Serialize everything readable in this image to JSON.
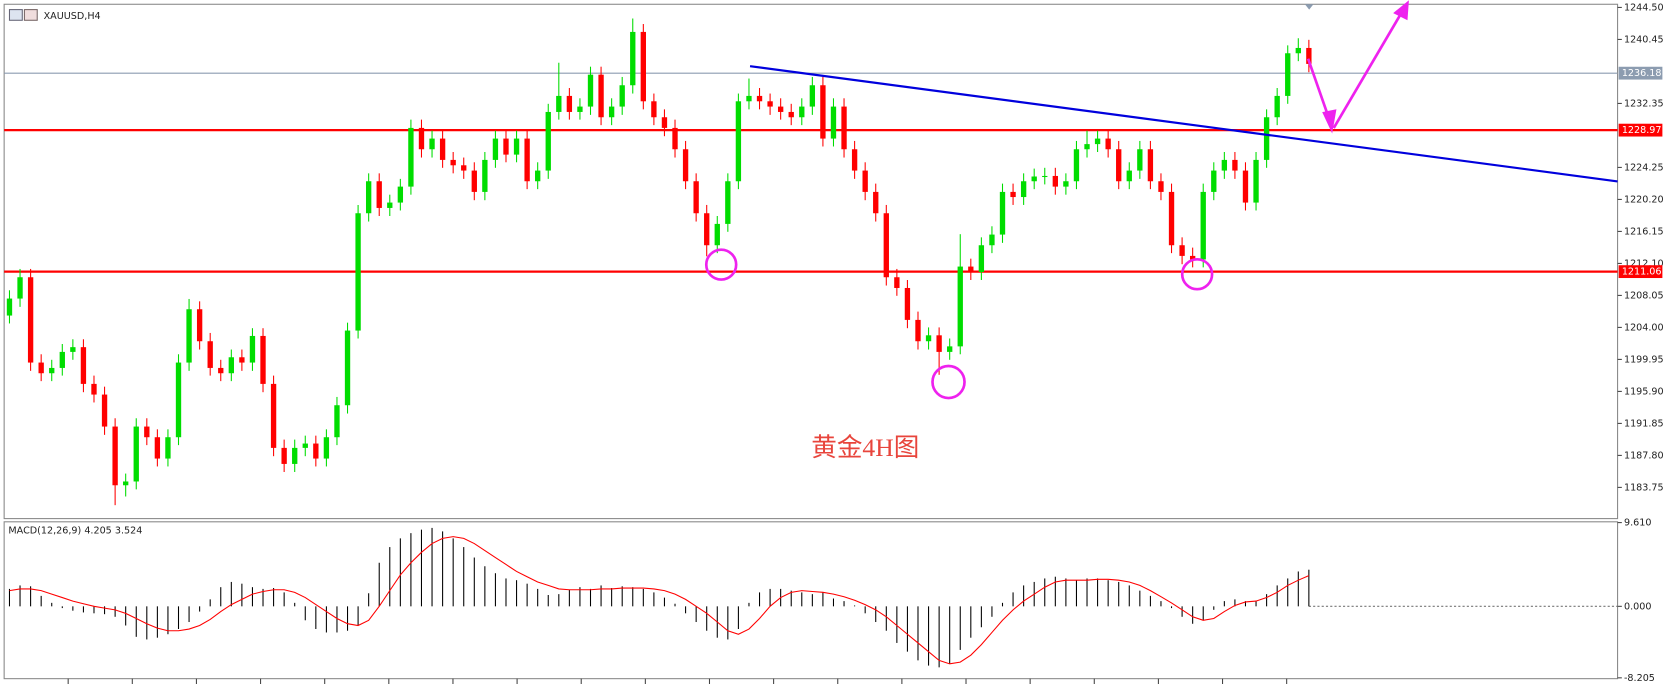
{
  "chart_data": [
    {
      "type": "candlestick",
      "title": "XAUUSD,H4",
      "annotation": "黄金4H图",
      "up_color": "#00dd00",
      "down_color": "#ff0000",
      "ylim": [
        1179.8,
        1244.9
      ],
      "yticks": [
        {
          "value": 1244.5,
          "label": "1244.50"
        },
        1240.45,
        1232.35,
        1224.25,
        {
          "value": 1220.2,
          "label": "1220.20"
        },
        1216.15,
        {
          "value": 1212.1,
          "label": "1212.10"
        },
        1208.05,
        {
          "value": 1204,
          "label": "1204.00"
        },
        1199.95,
        {
          "value": 1195.9,
          "label": "1195.90"
        },
        1191.85,
        {
          "value": 1187.8,
          "label": "1187.80"
        },
        1183.75
      ],
      "levels": [
        {
          "value": 1236.18,
          "color": "#8c9cb0"
        },
        {
          "value": 1228.97,
          "color": "#ff0000"
        },
        {
          "value": 1211.06,
          "color": "#ff0000"
        }
      ],
      "open": [
        1205.5,
        1207.65,
        1210.35,
        1199.55,
        1198.2,
        1198.87,
        1200.9,
        1201.5,
        1196.85,
        1195.5,
        1191.45,
        1184.02,
        1184.5,
        1191.45,
        1190.1,
        1187.4,
        1190.1,
        1199.55,
        1206.3,
        1202.25,
        1198.87,
        1198.2,
        1200.22,
        1199.55,
        1202.92,
        1196.85,
        1188.75,
        1186.72,
        1188.75,
        1189.3,
        1187.4,
        1190.1,
        1194.15,
        1203.6,
        1218.45,
        1222.5,
        1219.12,
        1219.8,
        1221.82,
        1229.25,
        1226.55,
        1227.9,
        1225.2,
        1224.52,
        1223.85,
        1221.15,
        1225.2,
        1227.9,
        1225.87,
        1227.9,
        1222.5,
        1223.85,
        1231.27,
        1233.3,
        1231.27,
        1231.95,
        1235.99,
        1230.6,
        1231.95,
        1234.65,
        1241.4,
        1232.62,
        1230.6,
        1229.25,
        1226.55,
        1222.5,
        1218.45,
        1214.4,
        1217.1,
        1222.5,
        1232.62,
        1233.3,
        1232.62,
        1231.95,
        1231.27,
        1230.6,
        1231.95,
        1234.65,
        1227.9,
        1231.95,
        1226.55,
        1223.85,
        1221.15,
        1218.45,
        1210.35,
        1208.99,
        1204.95,
        1202.25,
        1203.0,
        1200.9,
        1201.6,
        1211.7,
        1211.02,
        1214.4,
        1215.75,
        1221.15,
        1220.5,
        1222.5,
        1223.1,
        1223.17,
        1221.82,
        1222.5,
        1226.55,
        1227.2,
        1227.9,
        1226.55,
        1222.5,
        1223.85,
        1226.55,
        1222.5,
        1221.15,
        1214.4,
        1213.05,
        1212.6,
        1221.15,
        1223.85,
        1225.2,
        1223.85,
        1219.8,
        1225.2,
        1230.6,
        1233.3,
        1238.7,
        1239.37
      ],
      "high": [
        1208.7,
        1211.4,
        1211.4,
        1200.6,
        1199.9,
        1201.9,
        1202.5,
        1202.5,
        1197.9,
        1196.5,
        1192.5,
        1185.5,
        1192.5,
        1192.5,
        1191.1,
        1191.1,
        1200.6,
        1207.6,
        1207.3,
        1203.3,
        1199.9,
        1201.2,
        1201.2,
        1203.9,
        1203.9,
        1197.9,
        1189.8,
        1189.8,
        1190.3,
        1190.3,
        1191.1,
        1195.2,
        1204.6,
        1219.5,
        1223.5,
        1223.5,
        1220.8,
        1222.8,
        1230.3,
        1230.3,
        1228.9,
        1228.9,
        1226.2,
        1225.5,
        1224.9,
        1226.2,
        1228.9,
        1228.9,
        1228.9,
        1228.9,
        1224.9,
        1232.3,
        1237.5,
        1234.3,
        1233.0,
        1237.0,
        1237.0,
        1233.0,
        1235.7,
        1243.1,
        1242.4,
        1233.6,
        1231.6,
        1230.3,
        1227.6,
        1223.5,
        1219.5,
        1218.1,
        1223.5,
        1233.6,
        1235.5,
        1234.3,
        1233.6,
        1233.0,
        1232.3,
        1233.0,
        1235.7,
        1235.7,
        1233.0,
        1233.0,
        1227.6,
        1224.9,
        1222.2,
        1219.5,
        1211.4,
        1210.0,
        1206.0,
        1204.0,
        1204.0,
        1202.6,
        1215.8,
        1212.7,
        1215.4,
        1216.8,
        1222.2,
        1222.2,
        1223.5,
        1224.1,
        1224.2,
        1224.2,
        1223.5,
        1227.6,
        1228.9,
        1228.9,
        1228.9,
        1227.6,
        1224.9,
        1227.6,
        1227.6,
        1223.5,
        1222.2,
        1215.4,
        1214.1,
        1222.2,
        1224.9,
        1226.2,
        1226.2,
        1224.9,
        1226.2,
        1231.6,
        1234.3,
        1239.7,
        1240.6,
        1240.4
      ],
      "low": [
        1204.5,
        1206.6,
        1198.5,
        1197.2,
        1197.2,
        1197.9,
        1199.9,
        1195.8,
        1194.5,
        1190.4,
        1181.5,
        1182.6,
        1183.5,
        1189.1,
        1186.4,
        1186.4,
        1189.1,
        1198.5,
        1201.2,
        1197.9,
        1197.2,
        1197.2,
        1198.5,
        1198.5,
        1195.8,
        1187.7,
        1185.7,
        1185.7,
        1187.7,
        1186.4,
        1186.4,
        1189.1,
        1193.1,
        1202.6,
        1217.4,
        1218.1,
        1218.1,
        1218.8,
        1220.8,
        1225.5,
        1225.5,
        1224.2,
        1223.5,
        1222.8,
        1220.1,
        1220.1,
        1224.2,
        1224.9,
        1224.9,
        1221.5,
        1221.5,
        1222.8,
        1230.3,
        1230.3,
        1230.3,
        1230.9,
        1229.6,
        1229.6,
        1230.9,
        1233.6,
        1231.6,
        1229.6,
        1228.2,
        1225.5,
        1221.5,
        1217.4,
        1213.0,
        1213.4,
        1216.1,
        1221.5,
        1231.6,
        1231.6,
        1230.9,
        1230.3,
        1229.6,
        1229.6,
        1230.9,
        1226.9,
        1226.9,
        1225.5,
        1222.8,
        1220.1,
        1217.4,
        1209.3,
        1208.0,
        1203.9,
        1201.2,
        1201.2,
        1198.0,
        1199.9,
        1200.6,
        1210.0,
        1210.0,
        1213.4,
        1214.7,
        1219.5,
        1219.5,
        1221.5,
        1222.1,
        1220.8,
        1220.8,
        1221.5,
        1225.5,
        1226.2,
        1225.5,
        1221.5,
        1221.5,
        1222.8,
        1221.5,
        1220.1,
        1213.4,
        1212.0,
        1211.6,
        1211.6,
        1220.1,
        1222.8,
        1222.8,
        1218.8,
        1218.8,
        1224.2,
        1229.6,
        1232.3,
        1237.7,
        1236.3
      ],
      "close": [
        1207.65,
        1210.35,
        1199.55,
        1198.2,
        1198.87,
        1200.9,
        1201.5,
        1196.85,
        1195.5,
        1191.45,
        1184.02,
        1184.5,
        1191.45,
        1190.1,
        1187.4,
        1190.1,
        1199.55,
        1206.3,
        1202.25,
        1198.87,
        1198.2,
        1200.22,
        1199.55,
        1202.92,
        1196.85,
        1188.75,
        1186.72,
        1188.75,
        1189.3,
        1187.4,
        1190.1,
        1194.15,
        1203.6,
        1218.45,
        1222.5,
        1219.12,
        1219.8,
        1221.82,
        1229.25,
        1226.55,
        1227.9,
        1225.2,
        1224.52,
        1223.85,
        1221.15,
        1225.2,
        1227.9,
        1225.87,
        1227.9,
        1222.5,
        1223.85,
        1231.27,
        1233.3,
        1231.27,
        1231.95,
        1235.99,
        1230.6,
        1231.95,
        1234.65,
        1241.4,
        1232.62,
        1230.6,
        1229.25,
        1226.55,
        1222.5,
        1218.45,
        1214.4,
        1217.1,
        1222.5,
        1232.62,
        1233.3,
        1232.62,
        1231.95,
        1231.27,
        1230.6,
        1231.95,
        1234.65,
        1227.9,
        1231.95,
        1226.55,
        1223.85,
        1221.15,
        1218.45,
        1210.35,
        1208.99,
        1204.95,
        1202.25,
        1203.0,
        1200.9,
        1201.6,
        1211.7,
        1211.02,
        1214.4,
        1215.75,
        1221.15,
        1220.5,
        1222.5,
        1223.1,
        1223.17,
        1221.82,
        1222.5,
        1226.55,
        1227.2,
        1227.9,
        1226.55,
        1222.5,
        1223.85,
        1226.55,
        1222.5,
        1221.15,
        1214.4,
        1213.05,
        1212.6,
        1221.15,
        1223.85,
        1225.2,
        1223.85,
        1219.8,
        1225.2,
        1230.6,
        1233.3,
        1238.7,
        1239.37,
        1237.35
      ]
    },
    {
      "type": "macd",
      "title": "MACD(12,26,9) 4.205 3.524",
      "ylim": [
        -8.3,
        9.7
      ],
      "yticks": [
        {
          "value": 9.61,
          "label": "9.610"
        },
        {
          "value": 0,
          "label": "0.000"
        },
        -8.205
      ],
      "histogram": {
        "color": "#000000",
        "values": [
          2.0,
          2.4,
          2.3,
          1.2,
          0.4,
          -0.2,
          -0.5,
          -0.7,
          -0.8,
          -0.9,
          -1.2,
          -2.2,
          -3.5,
          -3.8,
          -3.6,
          -3.2,
          -2.6,
          -1.8,
          -0.6,
          0.8,
          2.2,
          2.8,
          2.6,
          2.2,
          2.0,
          2.1,
          1.6,
          0.4,
          -1.6,
          -2.6,
          -3.0,
          -3.0,
          -2.8,
          -2.2,
          1.5,
          5.0,
          6.8,
          7.8,
          8.4,
          8.8,
          9.0,
          8.6,
          7.8,
          6.8,
          5.6,
          4.6,
          3.8,
          3.2,
          3.0,
          2.6,
          2.0,
          1.3,
          1.4,
          1.9,
          2.2,
          2.0,
          2.4,
          2.1,
          2.3,
          2.2,
          2.0,
          1.6,
          1.0,
          0.3,
          -0.8,
          -1.8,
          -2.8,
          -3.6,
          -3.8,
          -2.6,
          0.4,
          1.6,
          2.0,
          2.0,
          1.8,
          1.6,
          1.4,
          1.6,
          0.9,
          0.6,
          0.1,
          -0.8,
          -1.8,
          -2.8,
          -4.2,
          -5.2,
          -6.2,
          -6.8,
          -7.0,
          -6.6,
          -5.0,
          -3.6,
          -2.4,
          -1.2,
          0.4,
          1.6,
          2.4,
          2.8,
          3.2,
          3.4,
          3.2,
          3.0,
          3.2,
          3.2,
          3.0,
          2.8,
          2.4,
          1.8,
          1.2,
          0.6,
          -0.2,
          -1.2,
          -2.0,
          -1.6,
          -0.4,
          0.6,
          0.8,
          0.6,
          0.6,
          1.4,
          2.4,
          3.2,
          4.0,
          4.205
        ]
      },
      "signal": {
        "color": "#ff0000",
        "values": [
          1.8,
          2.0,
          2.0,
          1.8,
          1.4,
          1.0,
          0.6,
          0.3,
          0.0,
          -0.2,
          -0.4,
          -0.8,
          -1.4,
          -2.0,
          -2.5,
          -2.8,
          -2.8,
          -2.6,
          -2.2,
          -1.5,
          -0.6,
          0.2,
          0.8,
          1.4,
          1.7,
          1.9,
          1.9,
          1.6,
          1.0,
          0.2,
          -0.6,
          -1.4,
          -2.0,
          -2.2,
          -1.6,
          0.0,
          1.8,
          3.6,
          5.0,
          6.2,
          7.2,
          7.8,
          8.0,
          7.8,
          7.2,
          6.4,
          5.6,
          4.8,
          4.0,
          3.4,
          2.8,
          2.4,
          2.0,
          1.9,
          1.9,
          1.9,
          2.0,
          2.0,
          2.1,
          2.1,
          2.1,
          2.0,
          1.8,
          1.4,
          0.8,
          0.0,
          -0.8,
          -1.8,
          -2.8,
          -3.2,
          -2.6,
          -1.4,
          0.0,
          1.0,
          1.6,
          1.8,
          1.7,
          1.6,
          1.4,
          1.1,
          0.7,
          0.2,
          -0.4,
          -1.2,
          -2.2,
          -3.2,
          -4.2,
          -5.2,
          -6.2,
          -6.6,
          -6.4,
          -5.6,
          -4.4,
          -3.0,
          -1.6,
          -0.4,
          0.6,
          1.4,
          2.2,
          2.8,
          3.0,
          3.0,
          3.0,
          3.1,
          3.1,
          3.0,
          2.8,
          2.4,
          1.8,
          1.1,
          0.4,
          -0.4,
          -1.2,
          -1.6,
          -1.4,
          -0.6,
          0.1,
          0.5,
          0.6,
          1.0,
          1.6,
          2.4,
          3.0,
          3.524
        ]
      }
    }
  ]
}
